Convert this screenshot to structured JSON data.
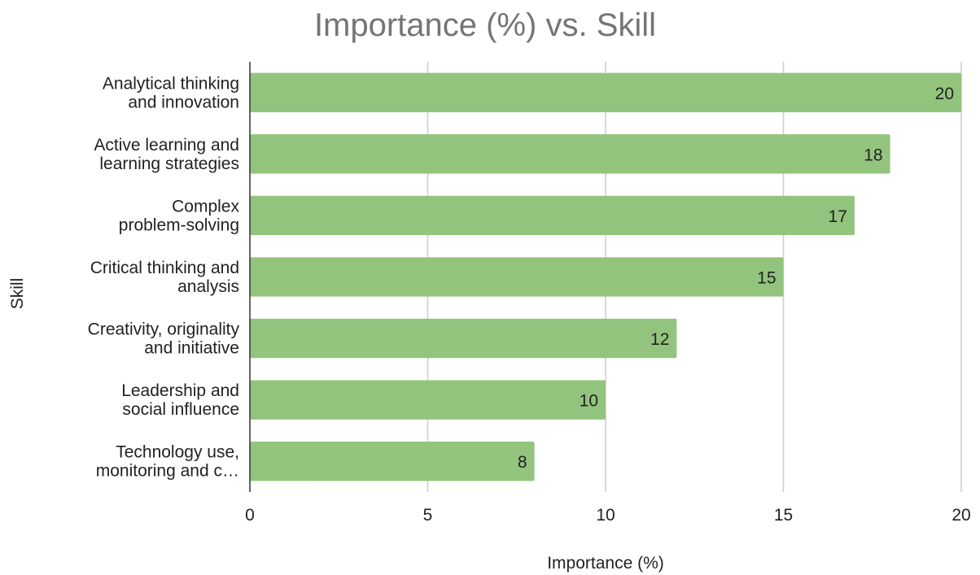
{
  "chart_data": {
    "type": "bar",
    "orientation": "horizontal",
    "title": "Importance (%) vs. Skill",
    "xlabel": "Importance (%)",
    "ylabel": "Skill",
    "categories": [
      [
        "Analytical thinking",
        "and innovation"
      ],
      [
        "Active learning and",
        "learning strategies"
      ],
      [
        "Complex",
        "problem-solving"
      ],
      [
        "Critical thinking and",
        "analysis"
      ],
      [
        "Creativity, originality",
        "and initiative"
      ],
      [
        "Leadership and",
        "social influence"
      ],
      [
        "Technology use,",
        "monitoring and c…"
      ]
    ],
    "values": [
      20,
      18,
      17,
      15,
      12,
      10,
      8
    ],
    "xlim": [
      0,
      20
    ],
    "xticks": [
      0,
      5,
      10,
      15,
      20
    ],
    "grid": true,
    "data_labels": true,
    "bar_color": "#93c47d"
  }
}
